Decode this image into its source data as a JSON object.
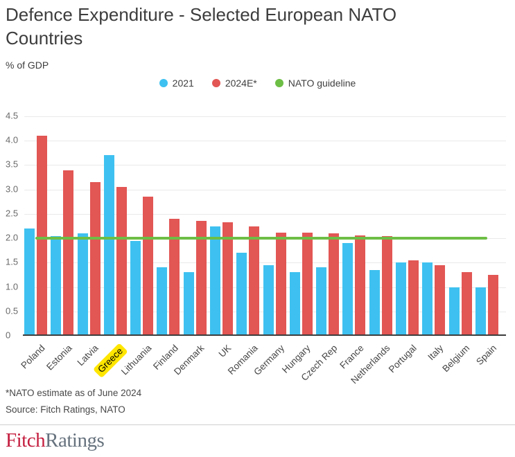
{
  "header": {
    "title": "Defence Expenditure - Selected European NATO Countries",
    "unit_label": "% of GDP"
  },
  "chart_data": {
    "type": "bar",
    "title": "Defence Expenditure - Selected European NATO Countries",
    "ylabel": "% of GDP",
    "xlabel": "",
    "grid": true,
    "legend_position": "top",
    "ylim": [
      0,
      4.5
    ],
    "y_ticks": [
      "4.5",
      "4.0",
      "3.5",
      "3.0",
      "2.5",
      "2.0",
      "1.5",
      "1.0",
      "0.5",
      "0"
    ],
    "categories": [
      "Poland",
      "Estonia",
      "Latvia",
      "Greece",
      "Lithuania",
      "Finland",
      "Denmark",
      "UK",
      "Romania",
      "Germany",
      "Hungary",
      "Czech Rep",
      "France",
      "Netherlands",
      "Portugal",
      "Italy",
      "Belgium",
      "Spain"
    ],
    "series": [
      {
        "name": "2021",
        "color": "#3ec1f0",
        "values": [
          2.2,
          2.05,
          2.1,
          3.7,
          1.95,
          1.4,
          1.3,
          2.25,
          1.7,
          1.45,
          1.3,
          1.4,
          1.9,
          1.35,
          1.5,
          1.5,
          1.0,
          1.0
        ]
      },
      {
        "name": "2024E*",
        "color": "#e25654",
        "values": [
          4.1,
          3.4,
          3.15,
          3.05,
          2.85,
          2.4,
          2.35,
          2.33,
          2.25,
          2.12,
          2.11,
          2.1,
          2.06,
          2.05,
          1.55,
          1.45,
          1.3,
          1.25
        ]
      }
    ],
    "guideline": {
      "name": "NATO guideline",
      "value": 2,
      "color": "#6dbe45"
    },
    "highlighted_category": "Greece"
  },
  "footnotes": {
    "note": "*NATO estimate as of June 2024",
    "source": "Source: Fitch Ratings, NATO"
  },
  "logo": {
    "part1": "Fitch",
    "part2": "Ratings"
  },
  "colors": {
    "bar_2021": "#3ec1f0",
    "bar_2024": "#e25654",
    "guideline": "#6dbe45",
    "highlight": "#ffe600",
    "axis": "#3c3c3c",
    "gridline": "#e9e9e9"
  }
}
